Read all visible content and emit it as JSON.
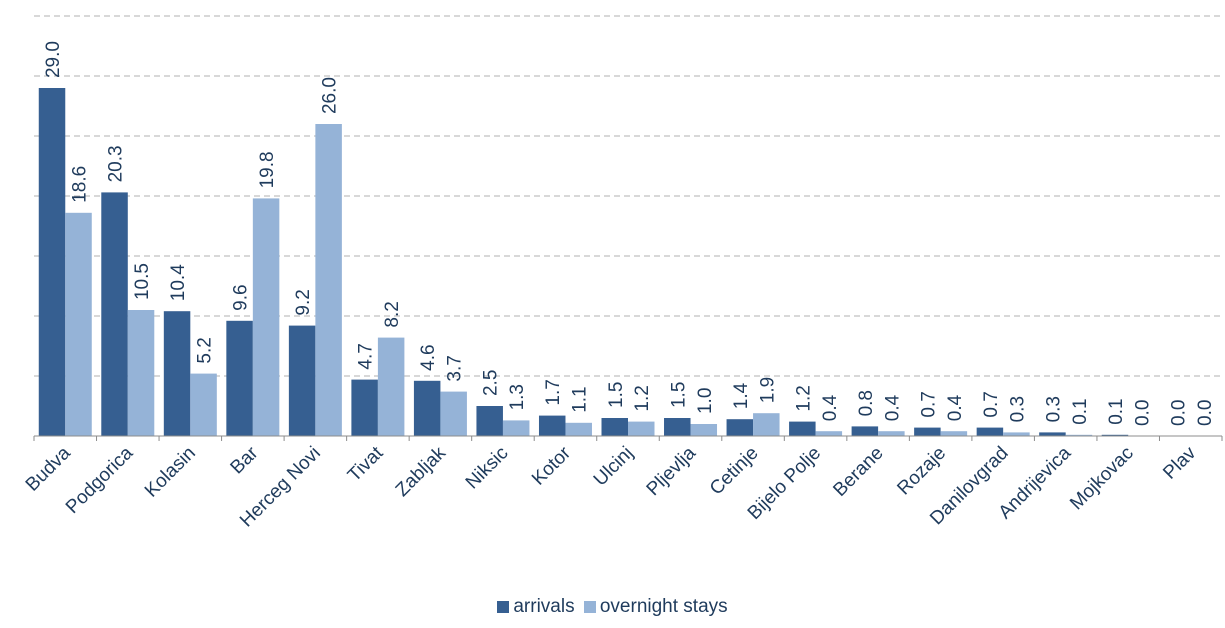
{
  "chart_data": {
    "type": "bar",
    "title": "",
    "xlabel": "",
    "ylabel": "",
    "ylim": [
      0,
      35
    ],
    "y_axis_visible": false,
    "grid": "horizontal dashed",
    "legend_position": "bottom-center",
    "categories": [
      "Budva",
      "Podgorica",
      "Kolasin",
      "Bar",
      "Herceg Novi",
      "Tivat",
      "Zabljak",
      "Niksic",
      "Kotor",
      "Ulcinj",
      "Pljevlja",
      "Cetinje",
      "Bijelo Polje",
      "Berane",
      "Rozaje",
      "Danilovgrad",
      "Andrijevica",
      "Mojkovac",
      "Plav"
    ],
    "series": [
      {
        "name": "arrivals",
        "color": "#365f91",
        "values": [
          29.0,
          20.3,
          10.4,
          9.6,
          9.2,
          4.7,
          4.6,
          2.5,
          1.7,
          1.5,
          1.5,
          1.4,
          1.2,
          0.8,
          0.7,
          0.7,
          0.3,
          0.1,
          0.0
        ],
        "labels": [
          "29.0",
          "20.3",
          "10.4",
          "9.6",
          "9.2",
          "4.7",
          "4.6",
          "2.5",
          "1.7",
          "1.5",
          "1.5",
          "1.4",
          "1.2",
          "0.8",
          "0.7",
          "0.7",
          "0.3",
          "0.1",
          "0.0"
        ]
      },
      {
        "name": "overnight stays",
        "color": "#95b3d7",
        "values": [
          18.6,
          10.5,
          5.2,
          19.8,
          26.0,
          8.2,
          3.7,
          1.3,
          1.1,
          1.2,
          1.0,
          1.9,
          0.4,
          0.4,
          0.4,
          0.3,
          0.1,
          0.0,
          0.0
        ],
        "labels": [
          "18.6",
          "10.5",
          "5.2",
          "19.8",
          "26.0",
          "8.2",
          "3.7",
          "1.3",
          "1.1",
          "1.2",
          "1.0",
          "1.9",
          "0.4",
          "0.4",
          "0.4",
          "0.3",
          "0.1",
          "0.0",
          "0.0"
        ]
      }
    ]
  }
}
